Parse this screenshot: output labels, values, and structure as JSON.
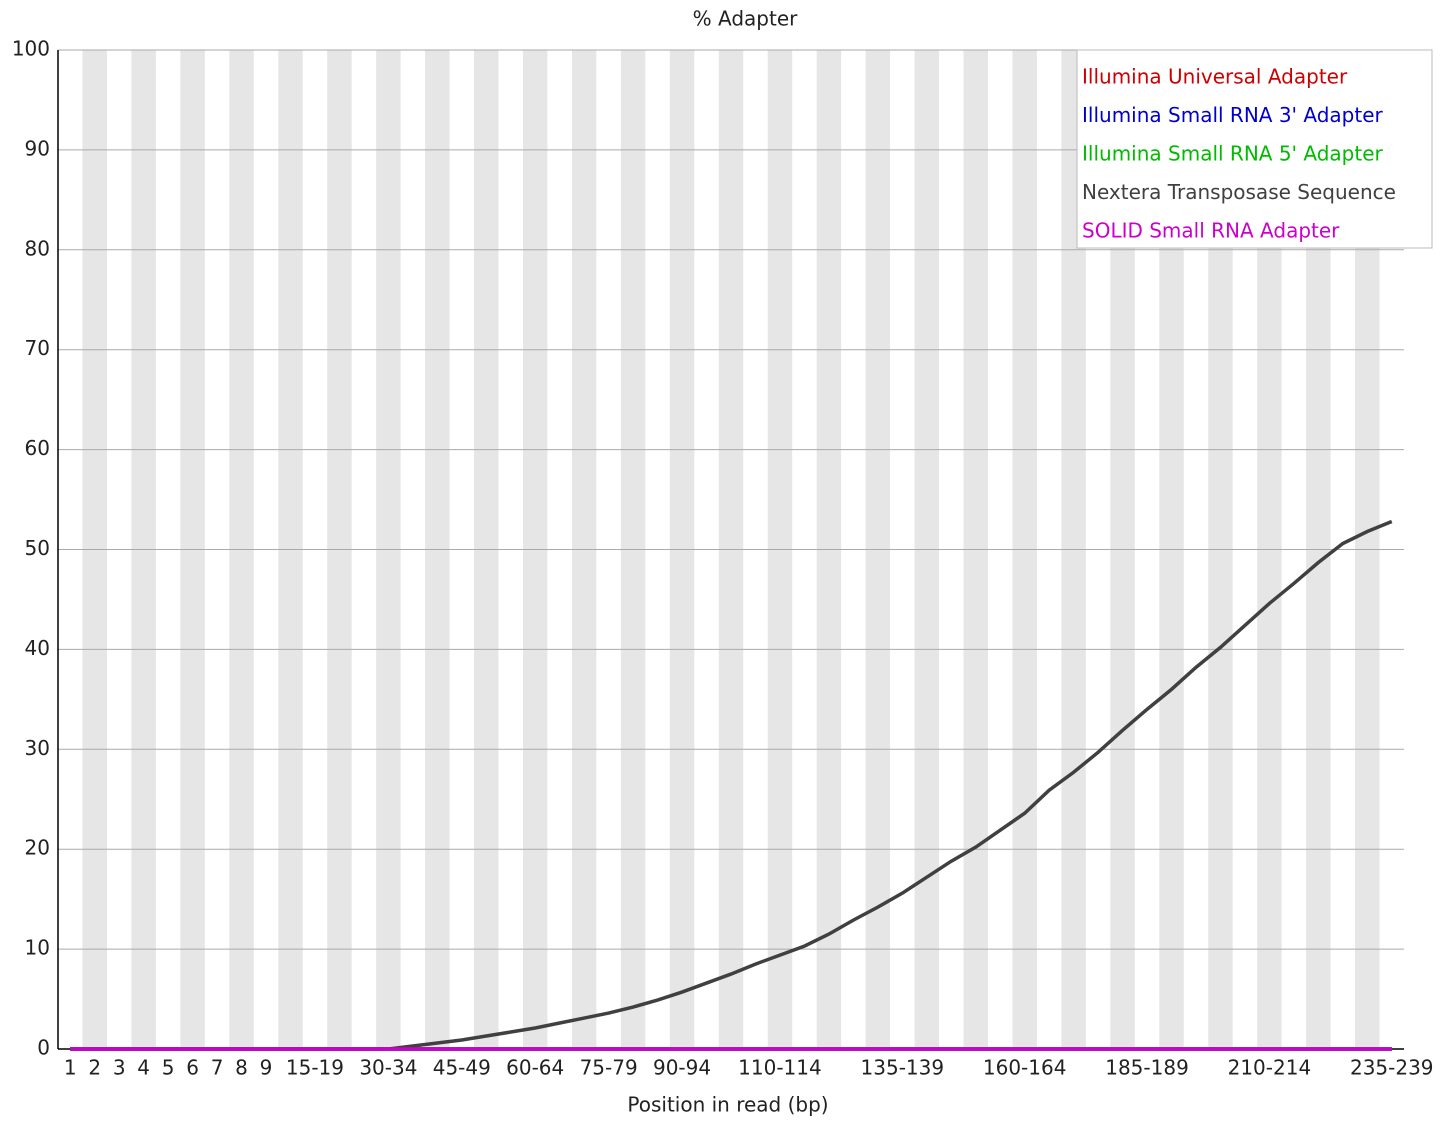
{
  "chart_data": {
    "type": "line",
    "title": "% Adapter",
    "x_label": "Position in read (bp)",
    "categories": [
      "1",
      "2",
      "3",
      "4",
      "5",
      "6",
      "7",
      "8",
      "9",
      null,
      "15-19",
      null,
      null,
      "30-34",
      null,
      null,
      "45-49",
      null,
      null,
      "60-64",
      null,
      null,
      "75-79",
      null,
      null,
      "90-94",
      null,
      null,
      null,
      "110-114",
      null,
      null,
      null,
      null,
      "135-139",
      null,
      null,
      null,
      null,
      "160-164",
      null,
      null,
      null,
      null,
      "185-189",
      null,
      null,
      null,
      null,
      "210-214",
      null,
      null,
      null,
      null,
      "235-239"
    ],
    "ylim": [
      0,
      100
    ],
    "yticks": [
      0,
      10,
      20,
      30,
      40,
      50,
      60,
      70,
      80,
      90,
      100
    ],
    "grid": true,
    "legend": "top-right",
    "series": [
      {
        "name": "Illumina Universal Adapter",
        "color": "#cc0000",
        "values": [
          0,
          0,
          0,
          0,
          0,
          0,
          0,
          0,
          0,
          0,
          0,
          0,
          0,
          0,
          0,
          0,
          0,
          0,
          0,
          0,
          0,
          0,
          0,
          0,
          0,
          0,
          0,
          0,
          0,
          0,
          0,
          0,
          0,
          0,
          0,
          0,
          0,
          0,
          0,
          0,
          0,
          0,
          0,
          0,
          0,
          0,
          0,
          0,
          0,
          0,
          0,
          0,
          0,
          0,
          0
        ]
      },
      {
        "name": "Illumina Small RNA 3' Adapter",
        "color": "#0000cc",
        "values": [
          0,
          0,
          0,
          0,
          0,
          0,
          0,
          0,
          0,
          0,
          0,
          0,
          0,
          0,
          0,
          0,
          0,
          0,
          0,
          0,
          0,
          0,
          0,
          0,
          0,
          0,
          0,
          0,
          0,
          0,
          0,
          0,
          0,
          0,
          0,
          0,
          0,
          0,
          0,
          0,
          0,
          0,
          0,
          0,
          0,
          0,
          0,
          0,
          0,
          0,
          0,
          0,
          0,
          0,
          0
        ]
      },
      {
        "name": "Illumina Small RNA 5' Adapter",
        "color": "#00bb00",
        "values": [
          0,
          0,
          0,
          0,
          0,
          0,
          0,
          0,
          0,
          0,
          0,
          0,
          0,
          0,
          0,
          0,
          0,
          0,
          0,
          0,
          0,
          0,
          0,
          0,
          0,
          0,
          0,
          0,
          0,
          0,
          0,
          0,
          0,
          0,
          0,
          0,
          0,
          0,
          0,
          0,
          0,
          0,
          0,
          0,
          0,
          0,
          0,
          0,
          0,
          0,
          0,
          0,
          0,
          0,
          0
        ]
      },
      {
        "name": "Nextera Transposase Sequence",
        "color": "#404040",
        "values": [
          0,
          0,
          0,
          0,
          0,
          0,
          0,
          0,
          0,
          0,
          0,
          0,
          0,
          0,
          0.3,
          0.6,
          0.9,
          1.3,
          1.7,
          2.1,
          2.6,
          3.1,
          3.6,
          4.2,
          4.9,
          5.7,
          6.6,
          7.5,
          8.5,
          9.4,
          10.3,
          11.5,
          12.9,
          14.2,
          15.6,
          17.2,
          18.8,
          20.2,
          21.9,
          23.6,
          25.9,
          27.7,
          29.7,
          31.9,
          34.0,
          36.0,
          38.2,
          40.2,
          42.4,
          44.6,
          46.6,
          48.7,
          50.6,
          51.8,
          52.8
        ]
      },
      {
        "name": "SOLID Small RNA Adapter",
        "color": "#cc00cc",
        "values": [
          0,
          0,
          0,
          0,
          0,
          0,
          0,
          0,
          0,
          0,
          0,
          0,
          0,
          0,
          0,
          0,
          0,
          0,
          0,
          0,
          0,
          0,
          0,
          0,
          0,
          0,
          0,
          0,
          0,
          0,
          0,
          0,
          0,
          0,
          0,
          0,
          0,
          0,
          0,
          0,
          0,
          0,
          0,
          0,
          0,
          0,
          0,
          0,
          0,
          0,
          0,
          0,
          0,
          0,
          0
        ]
      }
    ]
  }
}
